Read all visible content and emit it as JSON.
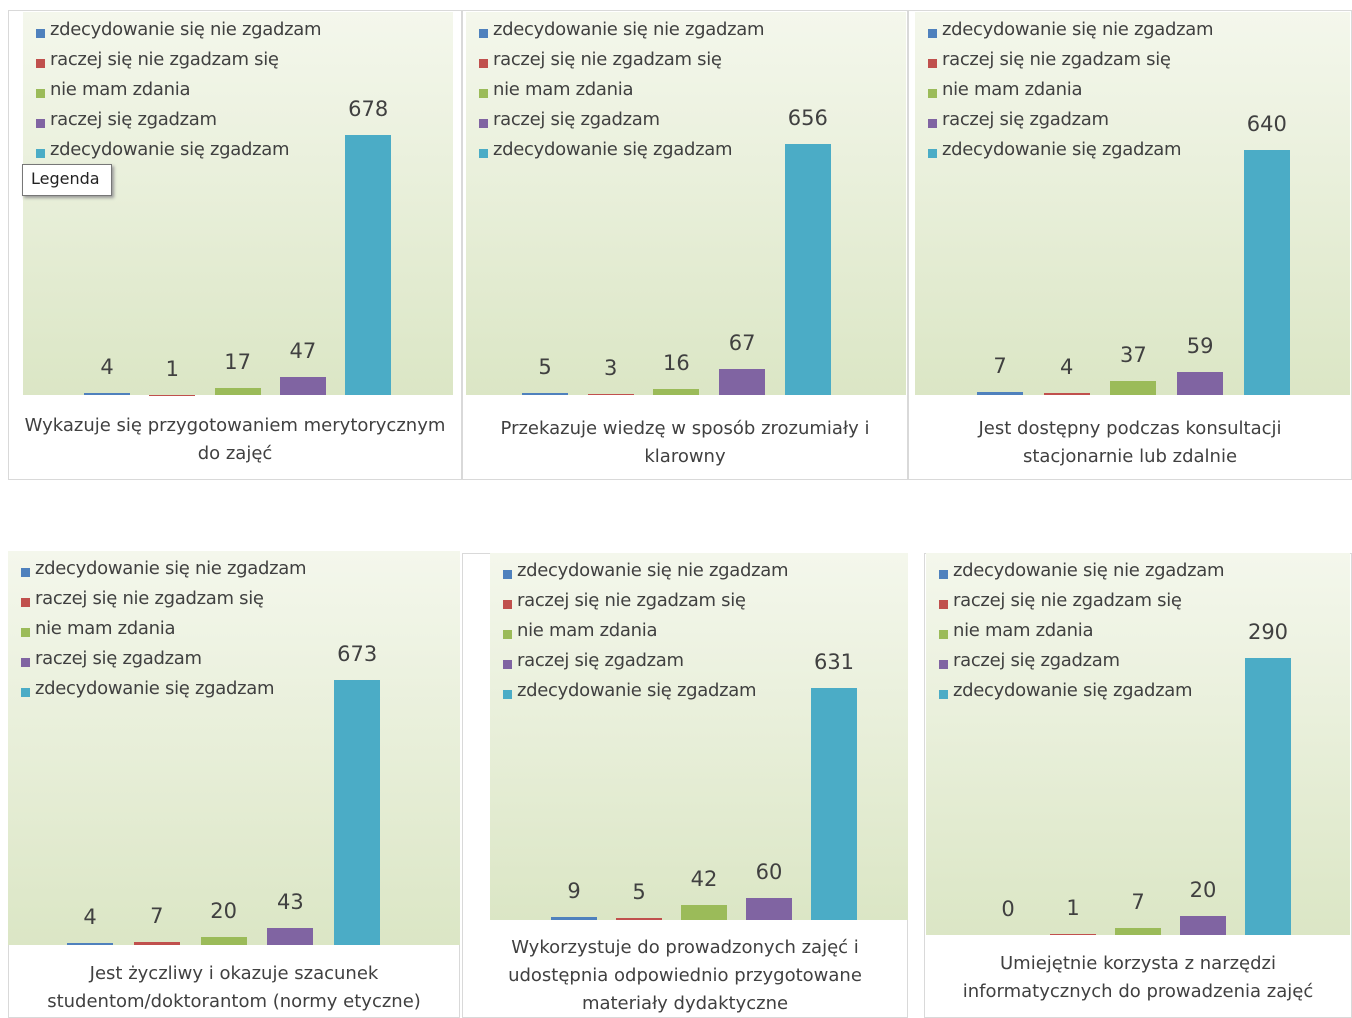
{
  "tooltip": "Legenda",
  "chart_data": [
    {
      "type": "bar",
      "title": "Wykazuje się przygotowaniem merytorycznym do zajęć",
      "categories": [
        "zdecydowanie się nie zgadzam",
        "raczej się nie zgadzam się",
        "nie mam zdania",
        "raczej się zgadzam",
        "zdecydowanie się zgadzam"
      ],
      "values": [
        4,
        1,
        17,
        47,
        678
      ],
      "colors": [
        "#4f81bd",
        "#c0504d",
        "#9bbb59",
        "#8064a2",
        "#4bacc6"
      ],
      "ylim": [
        0,
        1000
      ],
      "legend": "top-left"
    },
    {
      "type": "bar",
      "title": "Przekazuje wiedzę w sposób zrozumiały i klarowny",
      "categories": [
        "zdecydowanie się nie zgadzam",
        "raczej się nie zgadzam się",
        "nie mam zdania",
        "raczej się zgadzam",
        "zdecydowanie się zgadzam"
      ],
      "values": [
        5,
        3,
        16,
        67,
        656
      ],
      "colors": [
        "#4f81bd",
        "#c0504d",
        "#9bbb59",
        "#8064a2",
        "#4bacc6"
      ],
      "ylim": [
        0,
        1000
      ],
      "legend": "top-left"
    },
    {
      "type": "bar",
      "title": "Jest dostępny podczas konsultacji stacjonarnie lub zdalnie",
      "categories": [
        "zdecydowanie się nie zgadzam",
        "raczej się nie zgadzam się",
        "nie mam zdania",
        "raczej się zgadzam",
        "zdecydowanie się zgadzam"
      ],
      "values": [
        7,
        4,
        37,
        59,
        640
      ],
      "colors": [
        "#4f81bd",
        "#c0504d",
        "#9bbb59",
        "#8064a2",
        "#4bacc6"
      ],
      "ylim": [
        0,
        1000
      ],
      "legend": "top-left"
    },
    {
      "type": "bar",
      "title": "Jest życzliwy i okazuje szacunek studentom/doktorantom (normy etyczne)",
      "categories": [
        "zdecydowanie się nie zgadzam",
        "raczej się nie zgadzam się",
        "nie mam zdania",
        "raczej się zgadzam",
        "zdecydowanie się zgadzam"
      ],
      "values": [
        4,
        7,
        20,
        43,
        673
      ],
      "colors": [
        "#4f81bd",
        "#c0504d",
        "#9bbb59",
        "#8064a2",
        "#4bacc6"
      ],
      "ylim": [
        0,
        1000
      ],
      "legend": "top-left"
    },
    {
      "type": "bar",
      "title": "Wykorzystuje do prowadzonych zajęć i udostępnia odpowiednio przygotowane materiały dydaktyczne",
      "categories": [
        "zdecydowanie się nie zgadzam",
        "raczej się nie zgadzam się",
        "nie mam zdania",
        "raczej się zgadzam",
        "zdecydowanie się zgadzam"
      ],
      "values": [
        9,
        5,
        42,
        60,
        631
      ],
      "colors": [
        "#4f81bd",
        "#c0504d",
        "#9bbb59",
        "#8064a2",
        "#4bacc6"
      ],
      "ylim": [
        0,
        1000
      ],
      "legend": "top-left"
    },
    {
      "type": "bar",
      "title": "Umiejętnie korzysta z narzędzi informatycznych do prowadzenia zajęć",
      "categories": [
        "zdecydowanie się nie zgadzam",
        "raczej się nie zgadzam się",
        "nie mam zdania",
        "raczej się zgadzam",
        "zdecydowanie się zgadzam"
      ],
      "values": [
        0,
        1,
        7,
        20,
        290
      ],
      "colors": [
        "#4f81bd",
        "#c0504d",
        "#9bbb59",
        "#8064a2",
        "#4bacc6"
      ],
      "ylim": [
        0,
        400
      ],
      "legend": "top-left"
    }
  ]
}
